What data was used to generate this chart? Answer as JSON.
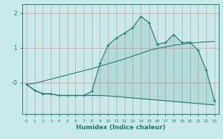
{
  "title": "",
  "xlabel": "Humidex (Indice chaleur)",
  "bg_color": "#c8eaea",
  "line_color": "#1a7a6e",
  "grid_color_x": "#e09090",
  "grid_color_y": "#e09090",
  "x_values": [
    0,
    1,
    2,
    3,
    4,
    5,
    6,
    7,
    8,
    9,
    10,
    11,
    12,
    13,
    14,
    15,
    16,
    17,
    18,
    19,
    20,
    21,
    22,
    23
  ],
  "line1": [
    -0.05,
    -0.22,
    -0.32,
    -0.32,
    -0.37,
    -0.37,
    -0.37,
    -0.37,
    -0.25,
    0.55,
    1.08,
    1.28,
    1.42,
    1.58,
    1.9,
    1.72,
    1.1,
    1.15,
    1.38,
    1.15,
    1.16,
    0.93,
    0.35,
    -0.52
  ],
  "line2": [
    -0.05,
    -0.22,
    -0.32,
    -0.32,
    -0.37,
    -0.37,
    -0.37,
    -0.37,
    -0.37,
    -0.37,
    -0.38,
    -0.4,
    -0.42,
    -0.44,
    -0.46,
    -0.48,
    -0.5,
    -0.52,
    -0.54,
    -0.56,
    -0.58,
    -0.6,
    -0.62,
    -0.64
  ],
  "line3": [
    -0.05,
    -0.02,
    0.04,
    0.1,
    0.16,
    0.22,
    0.28,
    0.34,
    0.4,
    0.47,
    0.54,
    0.61,
    0.68,
    0.76,
    0.84,
    0.92,
    0.98,
    1.02,
    1.07,
    1.1,
    1.13,
    1.15,
    1.17,
    1.18
  ],
  "ylim": [
    -0.9,
    2.25
  ],
  "xlim": [
    -0.5,
    23.5
  ],
  "yticks": [
    2,
    1,
    0
  ],
  "ytick_labels": [
    "2",
    "1",
    "-0"
  ]
}
